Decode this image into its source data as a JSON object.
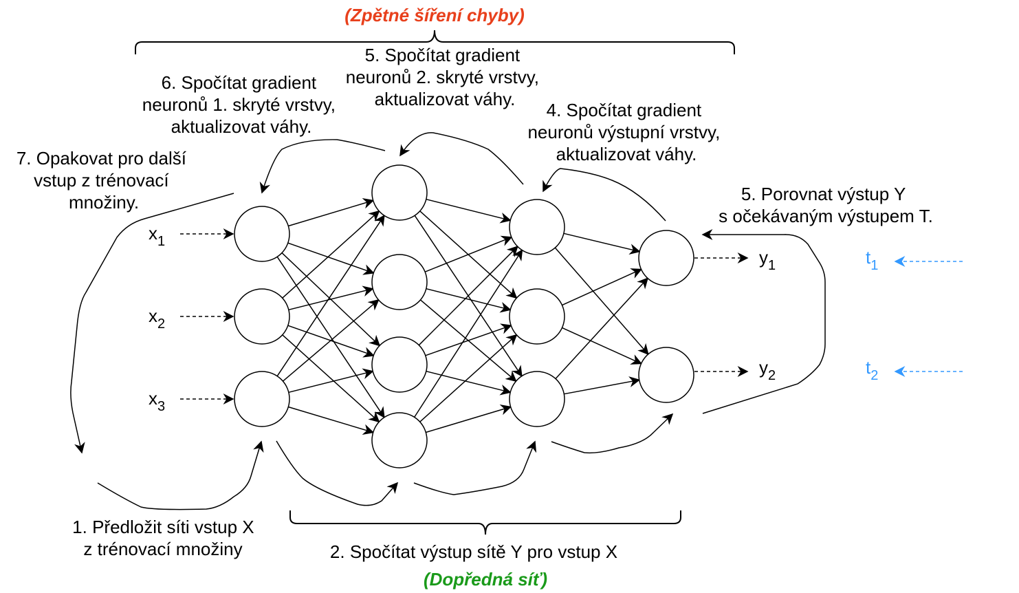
{
  "titles": {
    "backprop": "(Zpětné šíření chyby)",
    "feedforward": "(Dopředná síť)"
  },
  "steps": {
    "step1": [
      "1. Předložit síti vstup X",
      "z trénovací množiny"
    ],
    "step2": [
      "2. Spočítat výstup sítě Y pro vstup X"
    ],
    "step4": [
      "4. Spočítat gradient",
      "neuronů výstupní vrstvy,",
      "aktualizovat váhy."
    ],
    "step5_compare": [
      "5. Porovnat výstup Y",
      "s očekávaným výstupem T."
    ],
    "step5_gradient": [
      "5. Spočítat gradient",
      "neuronů 2. skryté vrstvy,",
      "aktualizovat váhy."
    ],
    "step6": [
      "6. Spočítat gradient",
      "neuronů 1. skryté vrstvy,",
      "aktualizovat váhy."
    ],
    "step7": [
      "7. Opakovat pro další",
      "vstup z trénovací",
      "množiny."
    ]
  },
  "inputs": [
    {
      "base": "x",
      "sub": "1"
    },
    {
      "base": "x",
      "sub": "2"
    },
    {
      "base": "x",
      "sub": "3"
    }
  ],
  "outputs": [
    {
      "base": "y",
      "sub": "1"
    },
    {
      "base": "y",
      "sub": "2"
    }
  ],
  "targets": [
    {
      "base": "t",
      "sub": "1"
    },
    {
      "base": "t",
      "sub": "2"
    }
  ],
  "network": {
    "layer_sizes": [
      3,
      4,
      3,
      2
    ]
  },
  "colors": {
    "backprop_title": "#e8401c",
    "feedforward_title": "#1a9a1a",
    "target": "#3399ff",
    "stroke": "#000000"
  }
}
